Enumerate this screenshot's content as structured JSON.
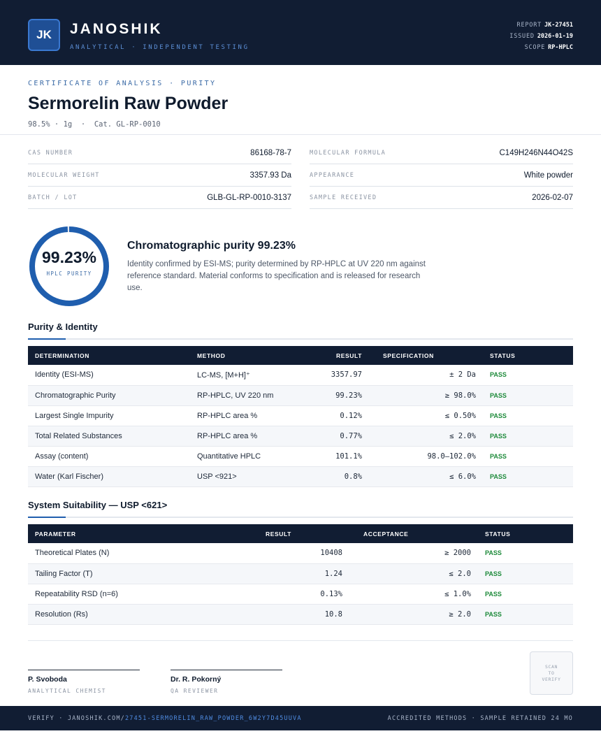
{
  "header": {
    "logo_text": "JK",
    "brand_name": "JANOSHIK",
    "brand_tagline": "ANALYTICAL · INDEPENDENT TESTING",
    "report_label": "REPORT",
    "report_value": "JK-27451",
    "issued_label": "ISSUED",
    "issued_value": "2026-01-19",
    "scope_label": "SCOPE",
    "scope_value": "RP-HPLC"
  },
  "title": {
    "cert_type": "CERTIFICATE OF ANALYSIS · PURITY",
    "product_name": "Sermorelin Raw Powder",
    "subtitle": "98.5% · 1g  ·  Cat. GL-RP-0010"
  },
  "properties": {
    "left": [
      {
        "label": "CAS NUMBER",
        "value": "86168-78-7"
      },
      {
        "label": "MOLECULAR WEIGHT",
        "value": "3357.93 Da"
      },
      {
        "label": "BATCH / LOT",
        "value": "GLB-GL-RP-0010-3137"
      }
    ],
    "right": [
      {
        "label": "MOLECULAR FORMULA",
        "value": "C149H246N44O42S"
      },
      {
        "label": "APPEARANCE",
        "value": "White powder"
      },
      {
        "label": "SAMPLE RECEIVED",
        "value": "2026-02-07"
      }
    ]
  },
  "purity": {
    "value": "99.23%",
    "fraction": 0.9923,
    "label": "HPLC PURITY",
    "heading": "Chromatographic purity 99.23%",
    "description": "Identity confirmed by ESI-MS; purity determined by RP-HPLC at UV 220 nm against reference standard. Material conforms to specification and is released for research use."
  },
  "identity_section": {
    "title": "Purity & Identity",
    "headers": [
      "DETERMINATION",
      "METHOD",
      "RESULT",
      "SPECIFICATION",
      "STATUS"
    ],
    "rows": [
      {
        "determination": "Identity (ESI-MS)",
        "method": "LC-MS, [M+H]⁺",
        "result": "3357.97",
        "spec": "± 2 Da",
        "status": "PASS"
      },
      {
        "determination": "Chromatographic Purity",
        "method": "RP-HPLC, UV 220 nm",
        "result": "99.23%",
        "spec": "≥ 98.0%",
        "status": "PASS"
      },
      {
        "determination": "Largest Single Impurity",
        "method": "RP-HPLC area %",
        "result": "0.12%",
        "spec": "≤ 0.50%",
        "status": "PASS"
      },
      {
        "determination": "Total Related Substances",
        "method": "RP-HPLC area %",
        "result": "0.77%",
        "spec": "≤ 2.0%",
        "status": "PASS"
      },
      {
        "determination": "Assay (content)",
        "method": "Quantitative HPLC",
        "result": "101.1%",
        "spec": "98.0–102.0%",
        "status": "PASS"
      },
      {
        "determination": "Water (Karl Fischer)",
        "method": "USP <921>",
        "result": "0.8%",
        "spec": "≤ 6.0%",
        "status": "PASS"
      }
    ]
  },
  "suitability_section": {
    "title": "System Suitability — USP <621>",
    "headers": [
      "PARAMETER",
      "RESULT",
      "ACCEPTANCE",
      "STATUS"
    ],
    "rows": [
      {
        "parameter": "Theoretical Plates (N)",
        "result": "10408",
        "acceptance": "≥ 2000",
        "status": "PASS"
      },
      {
        "parameter": "Tailing Factor (T)",
        "result": "1.24",
        "acceptance": "≤ 2.0",
        "status": "PASS"
      },
      {
        "parameter": "Repeatability RSD (n=6)",
        "result": "0.13%",
        "acceptance": "≤ 1.0%",
        "status": "PASS"
      },
      {
        "parameter": "Resolution (Rs)",
        "result": "10.8",
        "acceptance": "≥ 2.0",
        "status": "PASS"
      }
    ]
  },
  "signatures": [
    {
      "name": "P. Svoboda",
      "role": "ANALYTICAL CHEMIST"
    },
    {
      "name": "Dr. R. Pokorný",
      "role": "QA REVIEWER"
    }
  ],
  "qr": {
    "line1": "SCAN",
    "line2": "TO",
    "line3": "VERIFY"
  },
  "footer": {
    "verify_prefix": "VERIFY · JANOSHIK.COM/",
    "verify_link": "27451-SERMORELIN_RAW_POWDER_6W2Y7D45UUVA",
    "right_text": "ACCREDITED METHODS · SAMPLE RETAINED 24 MO"
  },
  "colors": {
    "navy": "#111d33",
    "accent_blue": "#1f5eae",
    "pass_green": "#1d8a3a"
  }
}
